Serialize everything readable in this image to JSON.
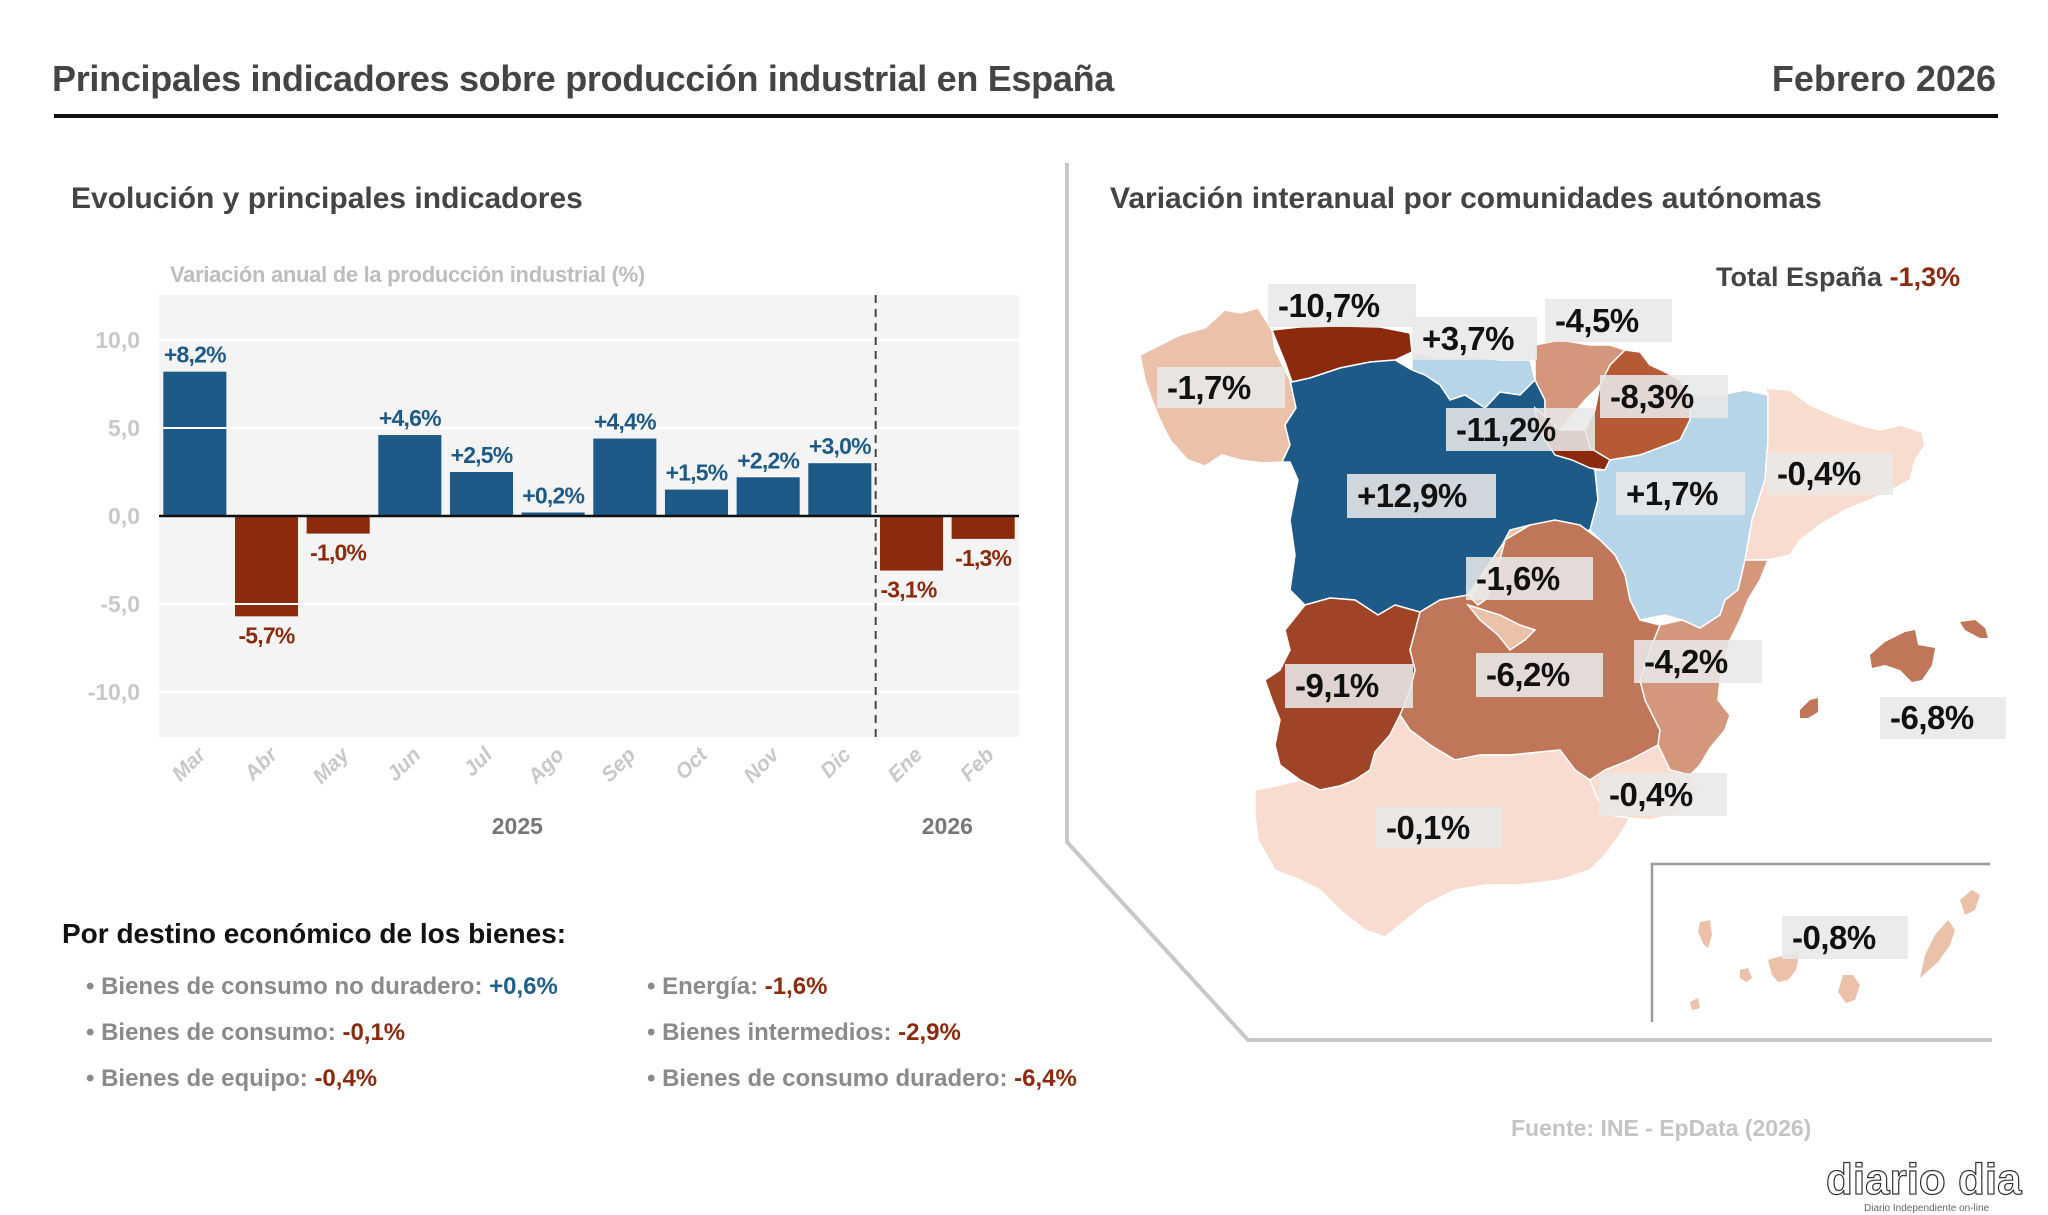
{
  "header": {
    "title": "Principales indicadores sobre producción industrial en España",
    "date": "Febrero 2026"
  },
  "left_panel": {
    "title": "Evolución y principales indicadores"
  },
  "chart_data": {
    "type": "bar",
    "title": "Variación anual de la producción industrial (%)",
    "xlabel": "",
    "ylabel": "",
    "categories": [
      "Mar",
      "Abr",
      "May",
      "Jun",
      "Jul",
      "Ago",
      "Sep",
      "Oct",
      "Nov",
      "Dic",
      "Ene",
      "Feb"
    ],
    "values": [
      8.2,
      -5.7,
      -1.0,
      4.6,
      2.5,
      0.2,
      4.4,
      1.5,
      2.2,
      3.0,
      -3.1,
      -1.3
    ],
    "value_labels": [
      "+8,2%",
      "-5,7%",
      "-1,0%",
      "+4,6%",
      "+2,5%",
      "+0,2%",
      "+4,4%",
      "+1,5%",
      "+2,2%",
      "+3,0%",
      "-3,1%",
      "-1,3%"
    ],
    "ylim": [
      -12.5,
      12.5
    ],
    "yticks": [
      10,
      5,
      0,
      -5,
      -10
    ],
    "ytick_labels": [
      "10,0",
      "5,0",
      "0,0",
      "-5,0",
      "-10,0"
    ],
    "year_groups": [
      {
        "label": "2025",
        "from": "Mar",
        "to": "Dic"
      },
      {
        "label": "2026",
        "from": "Ene",
        "to": "Feb"
      }
    ],
    "separator_after": "Dic",
    "grid": true,
    "colors": {
      "positive": "#1d5a87",
      "negative": "#8b2a0c"
    }
  },
  "breakdown": {
    "title": "Por destino económico de los bienes:",
    "items": [
      {
        "label": "Bienes de consumo no duradero:",
        "value": "+0,6%",
        "sign": "pos"
      },
      {
        "label": "Bienes de consumo:",
        "value": "-0,1%",
        "sign": "neg"
      },
      {
        "label": "Bienes de equipo:",
        "value": "-0,4%",
        "sign": "neg"
      },
      {
        "label": "Energía:",
        "value": "-1,6%",
        "sign": "neg"
      },
      {
        "label": "Bienes intermedios:",
        "value": "-2,9%",
        "sign": "neg"
      },
      {
        "label": "Bienes de consumo duradero:",
        "value": "-6,4%",
        "sign": "neg"
      }
    ]
  },
  "map": {
    "title": "Variación interanual por comunidades autónomas",
    "total_label": "Total España",
    "total_value": "-1,3%",
    "regions": [
      {
        "name": "Galicia",
        "value": -1.7,
        "label": "-1,7%"
      },
      {
        "name": "Asturias",
        "value": -10.7,
        "label": "-10,7%"
      },
      {
        "name": "Cantabria",
        "value": 3.7,
        "label": "+3,7%"
      },
      {
        "name": "País Vasco",
        "value": -4.5,
        "label": "-4,5%"
      },
      {
        "name": "Navarra",
        "value": -8.3,
        "label": "-8,3%"
      },
      {
        "name": "La Rioja",
        "value": -11.2,
        "label": "-11,2%"
      },
      {
        "name": "Castilla y León",
        "value": 12.9,
        "label": "+12,9%"
      },
      {
        "name": "Aragón",
        "value": 1.7,
        "label": "+1,7%"
      },
      {
        "name": "Cataluña",
        "value": -0.4,
        "label": "-0,4%"
      },
      {
        "name": "Madrid",
        "value": -1.6,
        "label": "-1,6%"
      },
      {
        "name": "Extremadura",
        "value": -9.1,
        "label": "-9,1%"
      },
      {
        "name": "Castilla-La Mancha",
        "value": -6.2,
        "label": "-6,2%"
      },
      {
        "name": "C. Valenciana",
        "value": -4.2,
        "label": "-4,2%"
      },
      {
        "name": "Baleares",
        "value": -6.8,
        "label": "-6,8%"
      },
      {
        "name": "Murcia",
        "value": -0.4,
        "label": "-0,4%"
      },
      {
        "name": "Andalucía",
        "value": -0.1,
        "label": "-0,1%"
      },
      {
        "name": "Canarias",
        "value": -0.8,
        "label": "-0,8%"
      }
    ],
    "colors": {
      "dark_blue": "#1d5a87",
      "light_blue": "#b7d5e8",
      "lightest": "#f8dccf",
      "light": "#ecc1aa",
      "medium_light": "#d4977c",
      "medium": "#c07658",
      "medium_dark": "#b65a35",
      "dark": "#9f4426",
      "darkest": "#8b2a0c"
    }
  },
  "footer": {
    "source": "Fuente: INE - EpData (2026)",
    "logo_text": "diario dia",
    "logo_tagline": "Diario Independiente on-line"
  }
}
